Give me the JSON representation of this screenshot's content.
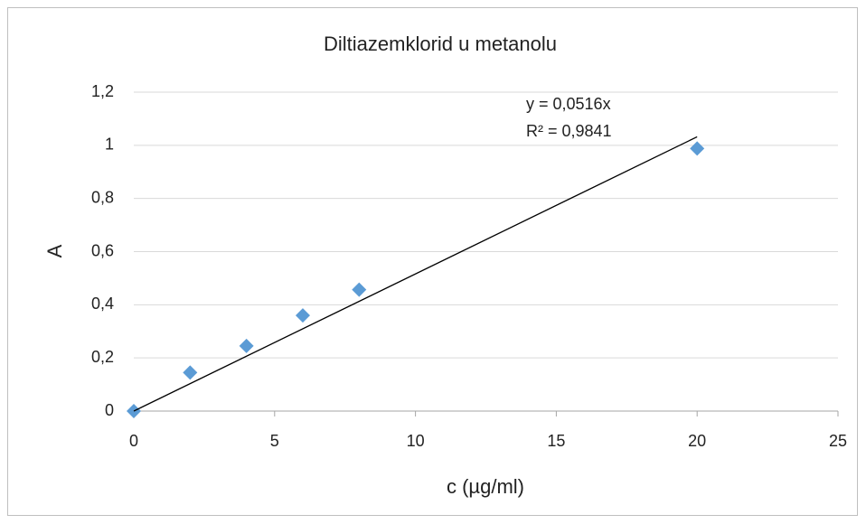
{
  "chart_data": {
    "type": "scatter",
    "title": "Diltiazemklorid u metanolu",
    "xlabel": "c (µg/ml)",
    "ylabel": "A",
    "series": [
      {
        "color": "#5b9bd5",
        "x": [
          0,
          2,
          4,
          6,
          8,
          20
        ],
        "values": [
          0,
          0.145,
          0.245,
          0.36,
          0.457,
          0.988
        ]
      }
    ],
    "trendline": {
      "color": "#000000",
      "x": [
        0,
        20
      ],
      "values": [
        0,
        1.032
      ]
    },
    "annotations": [
      "y = 0,0516x",
      "R² = 0,9841"
    ],
    "xlim": [
      0,
      25
    ],
    "xticks": [
      0,
      5,
      10,
      15,
      20,
      25
    ],
    "ylim": [
      0,
      1.2
    ],
    "yticks": [
      0,
      {
        "value": 0.2,
        "label": "0,2"
      },
      {
        "value": 0.4,
        "label": "0,4"
      },
      {
        "value": 0.6,
        "label": "0,6"
      },
      {
        "value": 0.8,
        "label": "0,8"
      },
      1,
      {
        "value": 1.2,
        "label": "1,2"
      }
    ],
    "grid": true
  }
}
